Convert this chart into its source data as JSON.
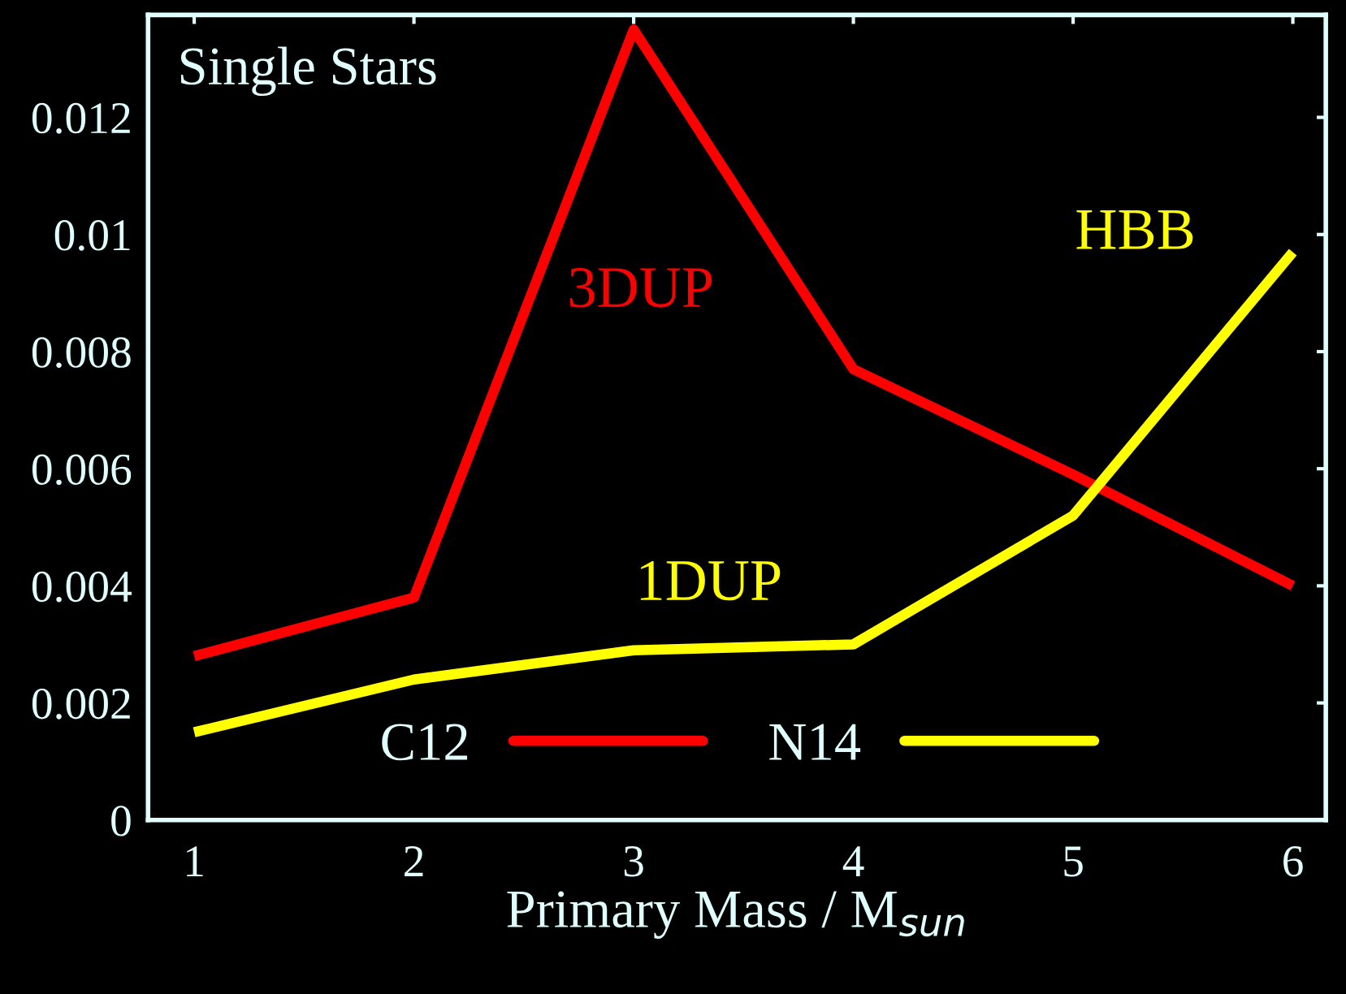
{
  "chart_data": {
    "type": "line",
    "xlabel": "Primary Mass / M$_{sun}$",
    "x": [
      1,
      2,
      3,
      4,
      5,
      6
    ],
    "series": [
      {
        "name": "C12",
        "color": "#ff0000",
        "values": [
          0.0028,
          0.0038,
          0.0135,
          0.0077,
          0.0059,
          0.004
        ]
      },
      {
        "name": "N14",
        "color": "#ffff00",
        "values": [
          0.0015,
          0.0024,
          0.0029,
          0.003,
          0.0052,
          0.0097
        ]
      }
    ],
    "xlim": [
      0.79,
      6.15
    ],
    "ylim": [
      0,
      0.01375
    ],
    "xticks": [
      1,
      2,
      3,
      4,
      5,
      6
    ],
    "yticks": [
      {
        "value": 0,
        "label": "0"
      },
      {
        "value": 0.002,
        "label": "0.002"
      },
      {
        "value": 0.004,
        "label": "0.004"
      },
      {
        "value": 0.006,
        "label": "0.006"
      },
      {
        "value": 0.008,
        "label": "0.008"
      },
      {
        "value": 0.01,
        "label": "0.01"
      },
      {
        "value": 0.012,
        "label": "0.012"
      }
    ],
    "annotations": [
      "Single Stars",
      "3DUP",
      "1DUP",
      "HBB"
    ],
    "legend": "bottom",
    "grid": false,
    "marker": "none",
    "line_style": "solid"
  }
}
